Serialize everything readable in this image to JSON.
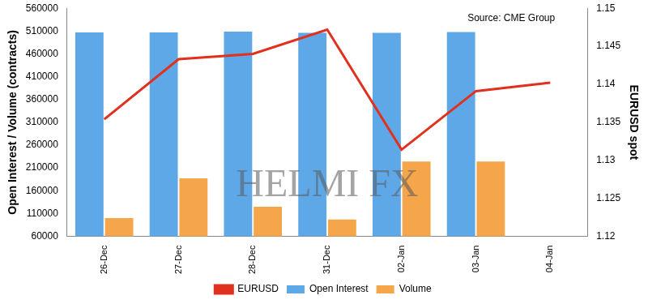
{
  "chart_data": {
    "type": "bar",
    "categories": [
      "26-Dec",
      "27-Dec",
      "28-Dec",
      "31-Dec",
      "02-Jan",
      "03-Jan",
      "04-Jan"
    ],
    "series": [
      {
        "name": "Open Interest",
        "type": "bar",
        "color": "#5fa8e8",
        "values": [
          507000,
          507000,
          509000,
          506000,
          506000,
          508000,
          null
        ]
      },
      {
        "name": "Volume",
        "type": "bar",
        "color": "#f5a54a",
        "values": [
          100000,
          187000,
          125000,
          97000,
          224000,
          224000,
          null
        ]
      },
      {
        "name": "EURUSD",
        "type": "line",
        "color": "#e0301e",
        "axis": "y2",
        "marker": "none",
        "line_style": "solid",
        "values": [
          1.1354,
          1.1433,
          1.144,
          1.1472,
          1.1314,
          1.1391,
          1.1402
        ]
      }
    ],
    "y_label": "Open Interest / Volume (contracts)",
    "y2_label": "EURUSD spot",
    "ylim": [
      60000,
      560000
    ],
    "yticks": [
      60000,
      110000,
      160000,
      210000,
      260000,
      310000,
      360000,
      410000,
      460000,
      510000,
      560000
    ],
    "y2lim": [
      1.12,
      1.15
    ],
    "y2ticks": [
      1.12,
      1.125,
      1.13,
      1.135,
      1.14,
      1.145,
      1.15
    ],
    "annotations": [
      "Source: CME Group",
      "HELMI FX"
    ],
    "legend": "bottom",
    "grid": false
  }
}
